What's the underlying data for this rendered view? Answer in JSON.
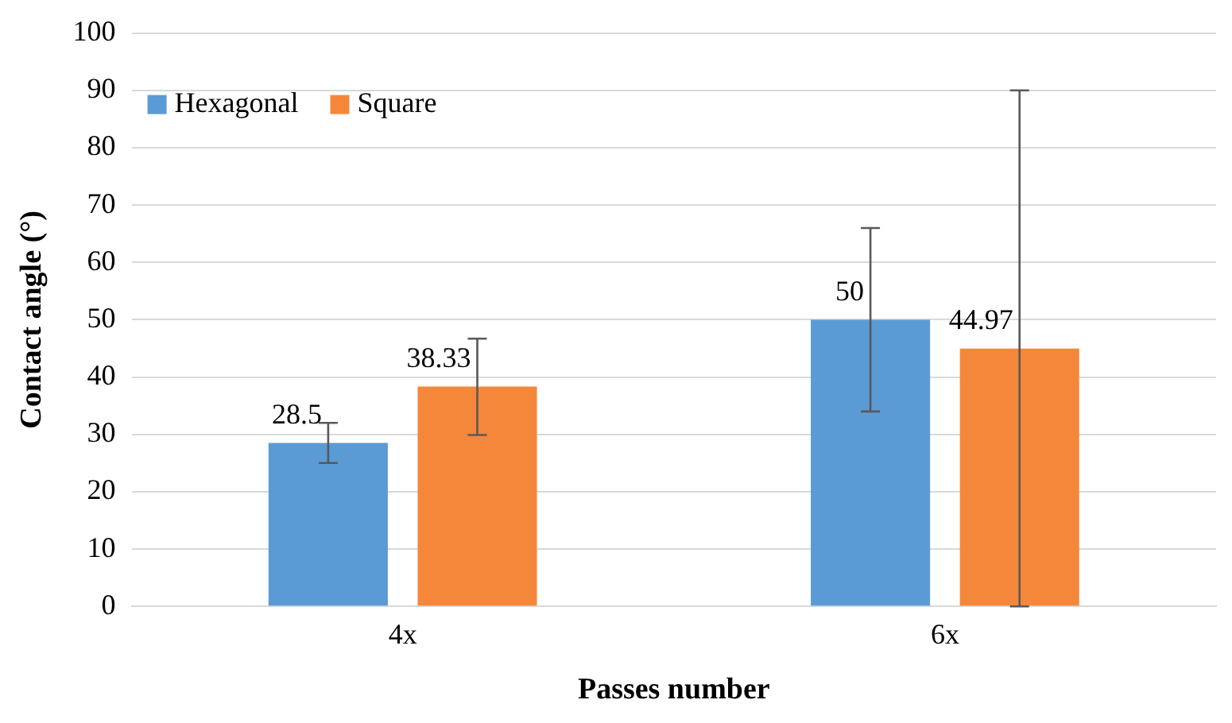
{
  "chart_data": {
    "type": "bar",
    "xlabel": "Passes number",
    "ylabel": "Contact angle (°)",
    "categories": [
      "4x",
      "6x"
    ],
    "series": [
      {
        "name": "Hexagonal",
        "color": "#5b9bd5",
        "values": [
          28.5,
          50
        ],
        "errors": [
          [
            25,
            32
          ],
          [
            34,
            66
          ]
        ]
      },
      {
        "name": "Square",
        "color": "#f5873a",
        "values": [
          38.33,
          44.97
        ],
        "errors": [
          [
            29.9,
            46.7
          ],
          [
            0,
            90
          ]
        ]
      }
    ],
    "ylim": [
      0,
      100
    ],
    "yticks": [
      0,
      10,
      20,
      30,
      40,
      50,
      60,
      70,
      80,
      90,
      100
    ],
    "grid": "y",
    "legend": "top left",
    "data_labels": true
  }
}
